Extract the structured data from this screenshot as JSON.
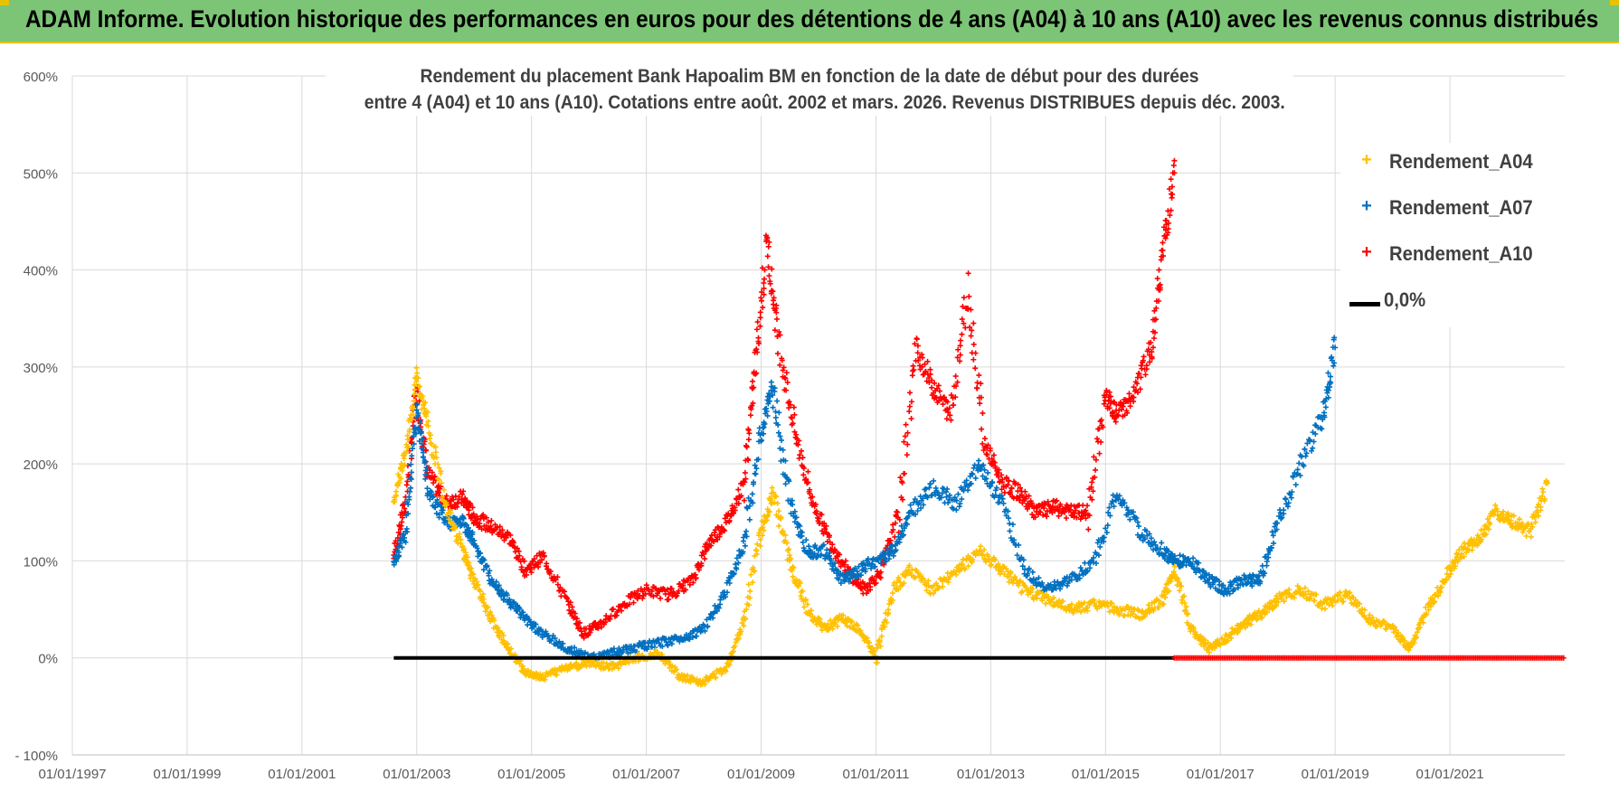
{
  "banner": {
    "title": "ADAM Informe. Evolution historique des performances en euros pour des détentions de 4 ans (A04) à 10 ans (A10) avec les revenus connus distribués"
  },
  "colors": {
    "banner_bg": "#7cc576",
    "a04": "#ffc000",
    "a07": "#0070c0",
    "a10": "#ff0000",
    "zero": "#000000"
  },
  "chart_data": {
    "type": "scatter",
    "title_line1": "Rendement du placement Bank Hapoalim BM en fonction de la date de début pour des durées",
    "title_line2": "entre 4 (A04) et 10 ans (A10).  Cotations entre août. 2002 et mars. 2026.  Revenus DISTRIBUES depuis déc. 2003.",
    "x_range": [
      1997.0,
      2023.0
    ],
    "x_ticks": [
      1997,
      1999,
      2001,
      2003,
      2005,
      2007,
      2009,
      2011,
      2013,
      2015,
      2017,
      2019,
      2021
    ],
    "x_tick_labels": [
      "01/01/1997",
      "01/01/1999",
      "01/01/2001",
      "01/01/2003",
      "01/01/2005",
      "01/01/2007",
      "01/01/2009",
      "01/01/2011",
      "01/01/2013",
      "01/01/2015",
      "01/01/2017",
      "01/01/2019",
      "01/01/2021"
    ],
    "y_range": [
      -100,
      600
    ],
    "y_ticks": [
      -100,
      0,
      100,
      200,
      300,
      400,
      500,
      600
    ],
    "y_tick_labels": [
      "- 100%",
      "0%",
      "100%",
      "200%",
      "300%",
      "400%",
      "500%",
      "600%"
    ],
    "grid": true,
    "legend_position": "top-right",
    "series": [
      {
        "name": "Rendement_A04",
        "color": "#ffc000",
        "marker": "+",
        "x": [
          2002.6,
          2002.8,
          2003.0,
          2003.2,
          2003.5,
          2003.8,
          2004.0,
          2004.3,
          2004.6,
          2004.9,
          2005.2,
          2005.6,
          2006.0,
          2006.4,
          2006.8,
          2007.2,
          2007.6,
          2008.0,
          2008.4,
          2008.7,
          2009.0,
          2009.2,
          2009.5,
          2009.8,
          2010.1,
          2010.4,
          2010.7,
          2011.0,
          2011.3,
          2011.6,
          2012.0,
          2012.4,
          2012.8,
          2013.2,
          2013.6,
          2014.0,
          2014.4,
          2014.8,
          2015.2,
          2015.6,
          2016.0,
          2016.2,
          2016.5,
          2016.8,
          2017.1,
          2017.4,
          2017.7,
          2018.0,
          2018.4,
          2018.8,
          2019.2,
          2019.6,
          2020.0,
          2020.3,
          2020.6,
          2020.9,
          2021.2,
          2021.5,
          2021.8,
          2022.1,
          2022.4,
          2022.7
        ],
        "y": [
          165,
          210,
          290,
          240,
          160,
          110,
          80,
          40,
          10,
          -15,
          -20,
          -10,
          -5,
          -10,
          0,
          5,
          -20,
          -25,
          -10,
          40,
          130,
          170,
          100,
          50,
          30,
          40,
          30,
          0,
          70,
          90,
          70,
          90,
          110,
          90,
          70,
          60,
          50,
          55,
          50,
          45,
          60,
          90,
          30,
          10,
          20,
          35,
          45,
          60,
          70,
          55,
          65,
          40,
          30,
          10,
          50,
          80,
          110,
          120,
          150,
          140,
          130,
          180
        ]
      },
      {
        "name": "Rendement_A07",
        "color": "#0070c0",
        "marker": "+",
        "x": [
          2002.6,
          2002.8,
          2003.0,
          2003.2,
          2003.5,
          2003.8,
          2004.0,
          2004.3,
          2004.6,
          2004.9,
          2005.2,
          2005.6,
          2006.0,
          2006.4,
          2006.8,
          2007.2,
          2007.6,
          2008.0,
          2008.4,
          2008.7,
          2009.0,
          2009.2,
          2009.5,
          2009.8,
          2010.1,
          2010.4,
          2010.7,
          2011.0,
          2011.3,
          2011.6,
          2012.0,
          2012.4,
          2012.8,
          2013.2,
          2013.6,
          2014.0,
          2014.4,
          2014.8,
          2015.2,
          2015.6,
          2016.0,
          2016.2,
          2016.5,
          2016.8,
          2017.1,
          2017.4,
          2017.7,
          2018.0,
          2018.4,
          2018.8,
          2019.0
        ],
        "y": [
          95,
          130,
          255,
          170,
          140,
          140,
          120,
          80,
          60,
          40,
          25,
          10,
          0,
          5,
          10,
          15,
          20,
          30,
          70,
          120,
          230,
          280,
          160,
          110,
          110,
          80,
          90,
          100,
          110,
          150,
          175,
          160,
          200,
          160,
          90,
          70,
          80,
          100,
          170,
          130,
          110,
          100,
          100,
          80,
          70,
          80,
          80,
          140,
          200,
          250,
          320
        ]
      },
      {
        "name": "Rendement_A10",
        "color": "#ff0000",
        "marker": "+",
        "x": [
          2002.6,
          2002.8,
          2003.0,
          2003.2,
          2003.5,
          2003.8,
          2004.0,
          2004.3,
          2004.6,
          2004.9,
          2005.2,
          2005.6,
          2005.9,
          2006.2,
          2006.6,
          2007.0,
          2007.4,
          2007.8,
          2008.1,
          2008.4,
          2008.7,
          2008.9,
          2009.1,
          2009.3,
          2009.6,
          2009.9,
          2010.2,
          2010.5,
          2010.8,
          2011.1,
          2011.4,
          2011.7,
          2012.0,
          2012.3,
          2012.6,
          2012.9,
          2013.2,
          2013.5,
          2013.8,
          2014.1,
          2014.4,
          2014.7,
          2015.0,
          2015.2,
          2015.5,
          2015.8,
          2016.0,
          2016.2
        ],
        "y": [
          105,
          160,
          275,
          190,
          160,
          165,
          145,
          135,
          125,
          90,
          105,
          60,
          25,
          35,
          55,
          70,
          65,
          80,
          120,
          140,
          180,
          300,
          430,
          330,
          230,
          160,
          120,
          90,
          70,
          90,
          150,
          320,
          280,
          250,
          380,
          220,
          180,
          170,
          150,
          155,
          150,
          150,
          270,
          250,
          270,
          320,
          420,
          500
        ]
      },
      {
        "name": "0,0%",
        "color": "#000000",
        "marker": "line",
        "x": [
          2002.6,
          2016.2
        ],
        "y": [
          0,
          0
        ]
      }
    ],
    "zero_markers": {
      "color": "#ff0000",
      "x_from": 2016.2,
      "x_to": 2023.0,
      "y": 0
    }
  }
}
